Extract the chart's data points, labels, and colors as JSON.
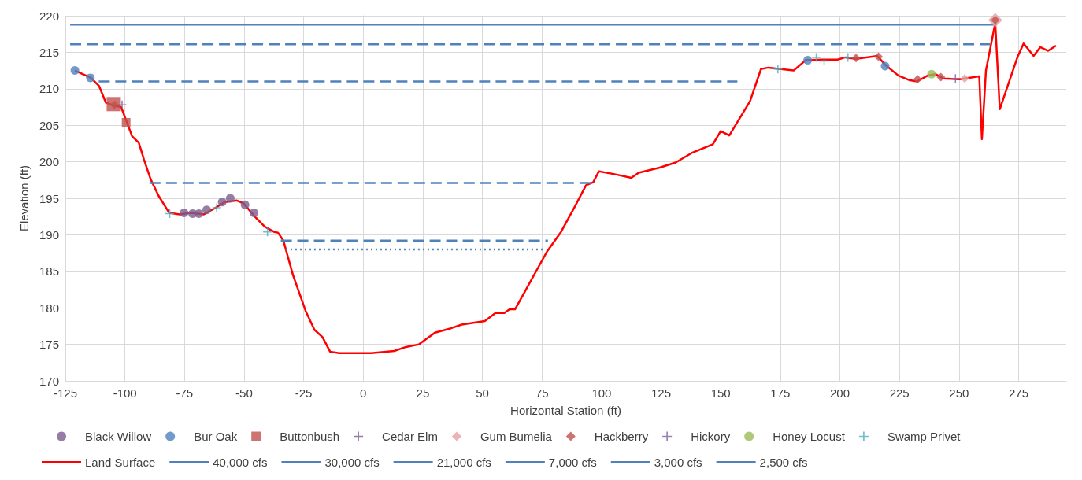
{
  "chart_data": {
    "type": "scatter",
    "xlabel": "Horizontal Station (ft)",
    "ylabel": "Elevation (ft)",
    "xlim": [
      -125,
      295
    ],
    "xticks": [
      -125,
      -100,
      -75,
      -50,
      -25,
      0,
      25,
      50,
      75,
      100,
      125,
      150,
      175,
      200,
      225,
      250,
      275
    ],
    "ylim": [
      170,
      220
    ],
    "yticks": [
      170,
      175,
      180,
      185,
      190,
      195,
      200,
      205,
      210,
      215,
      220
    ],
    "grid": true,
    "legend": "bottom",
    "series": [
      {
        "name": "Black Willow",
        "marker": "circle",
        "color": "#7a5c8c",
        "x": [
          -75.2,
          -71.6,
          -69,
          -65.7,
          -59.2,
          -55.8,
          -49.6,
          -45.9
        ],
        "values": [
          193.0,
          192.9,
          192.9,
          193.4,
          194.5,
          195.0,
          194.1,
          193.0
        ]
      },
      {
        "name": "Bur Oak",
        "marker": "circle",
        "color": "#4f81bd",
        "x": [
          -121,
          -114.5,
          186.5,
          219
        ],
        "values": [
          212.5,
          211.5,
          213.9,
          213.1
        ]
      },
      {
        "name": "Buttonbush",
        "marker": "square",
        "color": "#c0504d",
        "x": [
          -104.7,
          -99.5
        ],
        "values": [
          207.9,
          205.4
        ]
      },
      {
        "name": "Cedar Elm",
        "marker": "cross",
        "color": "#7a5c8c",
        "x": [
          -101.2
        ],
        "values": [
          207.8
        ]
      },
      {
        "name": "Gum Bumelia",
        "marker": "diamond",
        "color": "#e6a0a0",
        "x": [
          265.2,
          252.4
        ],
        "values": [
          219.4,
          211.4
        ]
      },
      {
        "name": "Hackberry",
        "marker": "diamond",
        "color": "#c0504d",
        "x": [
          -104.4,
          206.8,
          216.2,
          232.6,
          242.4,
          265.2
        ],
        "values": [
          207.8,
          214.2,
          214.4,
          211.3,
          211.6,
          219.4
        ]
      },
      {
        "name": "Hickory",
        "marker": "cross",
        "color": "#8064a2",
        "x": [
          248.5
        ],
        "values": [
          211.4
        ]
      },
      {
        "name": "Honey Locust",
        "marker": "circle",
        "color": "#9bbb59",
        "x": [
          238.5
        ],
        "values": [
          212.0
        ]
      },
      {
        "name": "Swamp Privet",
        "marker": "cross",
        "color": "#4bacc6",
        "x": [
          -81.2,
          -61.5,
          -40.2,
          174,
          190.1,
          193.4,
          203.4
        ],
        "values": [
          192.9,
          193.7,
          190.4,
          212.7,
          214.3,
          213.8,
          214.3
        ]
      },
      {
        "name": "Land Surface",
        "type": "line",
        "marker": "none",
        "line_style": "solid",
        "color": "#ff0000",
        "x": [
          -121,
          -114.3,
          -110.9,
          -108,
          -104.7,
          -101.6,
          -97,
          -94.2,
          -92,
          -89.2,
          -85.8,
          -81.4,
          -77,
          -72.5,
          -66.9,
          -62.5,
          -58,
          -53,
          -50.2,
          -45.8,
          -41.3,
          -37.4,
          -35.8,
          -33.5,
          -29.5,
          -24.2,
          -20.5,
          -17.1,
          -13.9,
          -10.1,
          3.3,
          13,
          17.5,
          23.4,
          30.1,
          36.8,
          41.3,
          51,
          55.5,
          59.2,
          61.4,
          63.7,
          77.1,
          83,
          89,
          93.5,
          96.5,
          98.9,
          105.5,
          112.5,
          115.6,
          124.4,
          131.1,
          137.8,
          146.7,
          150,
          153.6,
          162.3,
          166.9,
          170,
          180.6,
          185.6,
          192.3,
          199,
          202.3,
          206.8,
          213.5,
          215.7,
          219,
          224.6,
          229,
          232.4,
          236.8,
          240.2,
          243.5,
          250.2,
          258.5,
          259.6,
          261.3,
          265.2,
          267.1,
          274.6,
          277.1,
          281.3,
          284.1,
          287.4,
          290.7
        ],
        "values": [
          212.5,
          211.5,
          210.4,
          208.1,
          207.7,
          207.5,
          203.5,
          202.6,
          200.3,
          197.6,
          195.3,
          193.0,
          192.8,
          193.0,
          192.8,
          193.6,
          194.5,
          194.7,
          194.3,
          192.6,
          191.1,
          190.4,
          190.3,
          189.2,
          184.5,
          179.6,
          177.0,
          176.0,
          174.0,
          173.8,
          173.8,
          174.1,
          174.6,
          175.0,
          176.6,
          177.2,
          177.7,
          178.2,
          179.3,
          179.3,
          179.8,
          179.8,
          187.7,
          190.4,
          194.0,
          196.8,
          197.2,
          198.7,
          198.3,
          197.8,
          198.5,
          199.2,
          199.9,
          201.2,
          202.4,
          204.2,
          203.6,
          208.3,
          212.7,
          212.9,
          212.5,
          213.9,
          214.0,
          214.0,
          214.3,
          214.1,
          214.4,
          214.5,
          213.3,
          211.8,
          211.2,
          211.0,
          211.8,
          212.0,
          211.4,
          211.3,
          211.7,
          203.1,
          212.5,
          219.0,
          207.2,
          214.4,
          216.2,
          214.5,
          215.7,
          215.2,
          215.9
        ]
      },
      {
        "name": "40,000 cfs",
        "type": "line",
        "marker": "none",
        "line_style": "solid",
        "color": "#4f81bd",
        "x": [
          -123,
          265
        ],
        "values": [
          218.8,
          218.8
        ]
      },
      {
        "name": "30,000 cfs",
        "type": "line",
        "marker": "none",
        "line_style": "dashed",
        "color": "#4f81bd",
        "x": [
          -123,
          263
        ],
        "values": [
          216.1,
          216.1
        ]
      },
      {
        "name": "21,000 cfs",
        "type": "line",
        "marker": "none",
        "line_style": "dashed",
        "color": "#4f81bd",
        "x": [
          -111,
          157
        ],
        "values": [
          211.0,
          211.0
        ]
      },
      {
        "name": "7,000 cfs",
        "type": "line",
        "marker": "none",
        "line_style": "dashed",
        "color": "#4f81bd",
        "x": [
          -89.7,
          96
        ],
        "values": [
          197.1,
          197.1
        ]
      },
      {
        "name": "3,000 cfs",
        "type": "line",
        "marker": "none",
        "line_style": "dashed",
        "color": "#4f81bd",
        "x": [
          -34.6,
          77.5
        ],
        "values": [
          189.2,
          189.2
        ]
      },
      {
        "name": "2,500 cfs",
        "type": "line",
        "marker": "none",
        "line_style": "dotted",
        "color": "#4f81bd",
        "x": [
          -32.5,
          76
        ],
        "values": [
          188.0,
          188.0
        ]
      }
    ]
  }
}
